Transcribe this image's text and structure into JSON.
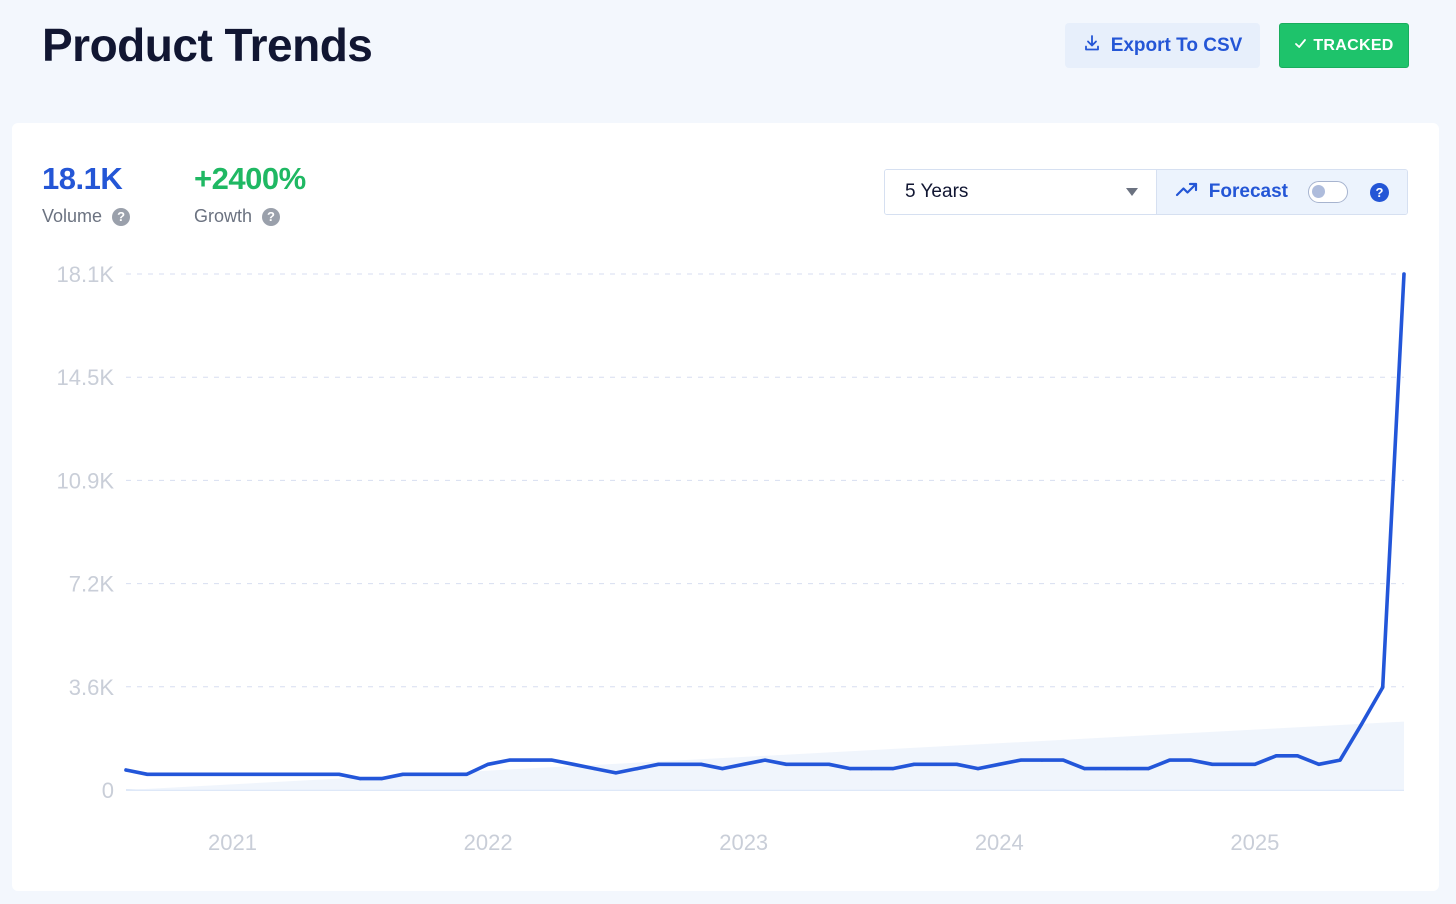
{
  "header": {
    "title": "Product Trends",
    "export_label": "Export To CSV",
    "tracked_label": "TRACKED"
  },
  "metrics": {
    "volume": {
      "value": "18.1K",
      "label": "Volume"
    },
    "growth": {
      "value": "+2400%",
      "label": "Growth"
    }
  },
  "controls": {
    "range_selected": "5 Years",
    "forecast_label": "Forecast",
    "forecast_enabled": false
  },
  "colors": {
    "line": "#2356d9",
    "volume": "#2456d6",
    "growth": "#1fb863",
    "grid": "#d7def0"
  },
  "chart_data": {
    "type": "line",
    "ylim": [
      0,
      18100
    ],
    "yticks": [
      {
        "value": 0,
        "label": "0"
      },
      {
        "value": 3620,
        "label": "3.6K"
      },
      {
        "value": 7240,
        "label": "7.2K"
      },
      {
        "value": 10860,
        "label": "10.9K"
      },
      {
        "value": 14480,
        "label": "14.5K"
      },
      {
        "value": 18100,
        "label": "18.1K"
      }
    ],
    "xlim": [
      "2020-08",
      "2025-08"
    ],
    "xticks": [
      {
        "date": "2021-01",
        "label": "2021"
      },
      {
        "date": "2022-01",
        "label": "2022"
      },
      {
        "date": "2023-01",
        "label": "2023"
      },
      {
        "date": "2024-01",
        "label": "2024"
      },
      {
        "date": "2025-01",
        "label": "2025"
      }
    ],
    "x": [
      "2020-08",
      "2020-09",
      "2020-10",
      "2020-11",
      "2020-12",
      "2021-01",
      "2021-02",
      "2021-03",
      "2021-04",
      "2021-05",
      "2021-06",
      "2021-07",
      "2021-08",
      "2021-09",
      "2021-10",
      "2021-11",
      "2021-12",
      "2022-01",
      "2022-02",
      "2022-03",
      "2022-04",
      "2022-05",
      "2022-06",
      "2022-07",
      "2022-08",
      "2022-09",
      "2022-10",
      "2022-11",
      "2022-12",
      "2023-01",
      "2023-02",
      "2023-03",
      "2023-04",
      "2023-05",
      "2023-06",
      "2023-07",
      "2023-08",
      "2023-09",
      "2023-10",
      "2023-11",
      "2023-12",
      "2024-01",
      "2024-02",
      "2024-03",
      "2024-04",
      "2024-05",
      "2024-06",
      "2024-07",
      "2024-08",
      "2024-09",
      "2024-10",
      "2024-11",
      "2024-12",
      "2025-01",
      "2025-02",
      "2025-03",
      "2025-04",
      "2025-05",
      "2025-06",
      "2025-07",
      "2025-08"
    ],
    "y": [
      700,
      550,
      550,
      550,
      550,
      550,
      550,
      550,
      550,
      550,
      550,
      400,
      400,
      550,
      550,
      550,
      550,
      900,
      1050,
      1050,
      1050,
      900,
      750,
      600,
      750,
      900,
      900,
      900,
      750,
      900,
      1050,
      900,
      900,
      900,
      750,
      750,
      750,
      900,
      900,
      900,
      750,
      900,
      1050,
      1050,
      1050,
      750,
      750,
      750,
      750,
      1050,
      1050,
      900,
      900,
      900,
      1200,
      1200,
      900,
      1050,
      2300,
      3600,
      18100
    ],
    "forecast_band": [
      {
        "date": "2020-08",
        "low": 0,
        "high": 0
      },
      {
        "date": "2025-08",
        "low": 0,
        "high": 2400
      }
    ]
  }
}
